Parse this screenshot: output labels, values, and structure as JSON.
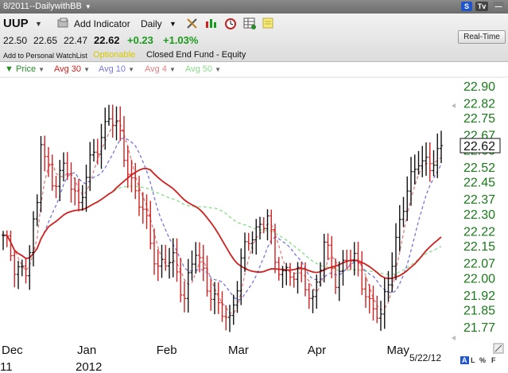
{
  "window": {
    "title": "8/2011--DailywithBB",
    "badge_s": "S",
    "badge_tv": "Tv"
  },
  "toolbar": {
    "symbol": "UUP",
    "add_indicator": "Add Indicator",
    "period": "Daily",
    "realtime": "Real-Time",
    "icons": [
      "settings-tools-icon",
      "bar-style-icon",
      "alarm-clock-icon",
      "table-icon",
      "notes-icon",
      "print-icon"
    ]
  },
  "quote": {
    "open": "22.50",
    "high": "22.65",
    "low": "22.47",
    "last": "22.62",
    "change": "+0.23",
    "pct": "+1.03%",
    "watchlist": "Add to Personal WatchList",
    "optionable": "Optionable",
    "type": "Closed End Fund - Equity"
  },
  "legend": [
    {
      "label": "Price",
      "color": "#2a8a2a"
    },
    {
      "label": "Avg 30",
      "color": "#d02020"
    },
    {
      "label": "Avg 10",
      "color": "#7777dd"
    },
    {
      "label": "Avg 4",
      "color": "#e08080"
    },
    {
      "label": "Avg 50",
      "color": "#88dd88"
    }
  ],
  "footer": {
    "date": "5/22/12",
    "a": "A",
    "l": "L",
    "pct": "%",
    "f": "F"
  },
  "chart_data": {
    "type": "ohlc",
    "y_ticks": [
      "22.90",
      "22.82",
      "22.75",
      "22.67",
      "22.60",
      "22.52",
      "22.45",
      "22.37",
      "22.30",
      "22.22",
      "22.15",
      "22.07",
      "22.00",
      "21.92",
      "21.85",
      "21.77"
    ],
    "ylim": [
      21.77,
      22.9
    ],
    "last_value": "22.62",
    "x_ticks": [
      {
        "label": "Dec",
        "index": 0
      },
      {
        "label": "Jan",
        "index": 20
      },
      {
        "label": "Feb",
        "index": 41
      },
      {
        "label": "Mar",
        "index": 60
      },
      {
        "label": "Apr",
        "index": 81
      },
      {
        "label": "May",
        "index": 102
      }
    ],
    "year_labels": [
      {
        "label": "11",
        "index": 0
      },
      {
        "label": "2012",
        "index": 20
      }
    ],
    "bars_count": 117,
    "key_closes": [
      [
        0,
        22.2
      ],
      [
        3,
        22.04
      ],
      [
        6,
        22.05
      ],
      [
        9,
        22.32
      ],
      [
        10,
        22.65
      ],
      [
        13,
        22.45
      ],
      [
        17,
        22.5
      ],
      [
        20,
        22.35
      ],
      [
        24,
        22.58
      ],
      [
        28,
        22.76
      ],
      [
        31,
        22.66
      ],
      [
        34,
        22.45
      ],
      [
        38,
        22.25
      ],
      [
        41,
        22.05
      ],
      [
        45,
        22.08
      ],
      [
        48,
        21.92
      ],
      [
        51,
        22.12
      ],
      [
        54,
        21.98
      ],
      [
        57,
        21.85
      ],
      [
        60,
        21.8
      ],
      [
        63,
        22.08
      ],
      [
        66,
        22.2
      ],
      [
        70,
        22.3
      ],
      [
        72,
        22.05
      ],
      [
        76,
        22.03
      ],
      [
        79,
        22.0
      ],
      [
        82,
        21.9
      ],
      [
        85,
        22.15
      ],
      [
        88,
        22.0
      ],
      [
        91,
        22.1
      ],
      [
        94,
        22.05
      ],
      [
        97,
        21.88
      ],
      [
        100,
        21.8
      ],
      [
        103,
        22.1
      ],
      [
        107,
        22.4
      ],
      [
        110,
        22.58
      ],
      [
        113,
        22.5
      ],
      [
        116,
        22.62
      ]
    ],
    "avg_colors": {
      "avg30": "#d02020",
      "avg10": "#7777dd",
      "avg4": "#e08080",
      "avg50": "#88dd88"
    }
  }
}
